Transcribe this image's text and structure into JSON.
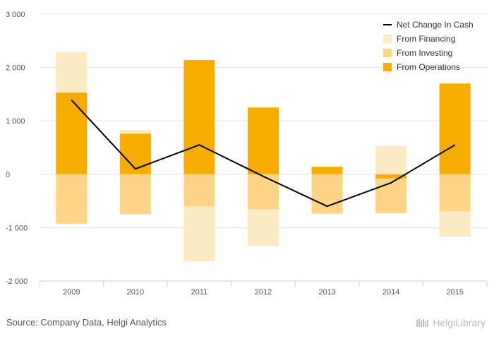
{
  "chart_data": {
    "type": "bar",
    "categories": [
      "2009",
      "2010",
      "2011",
      "2012",
      "2013",
      "2014",
      "2015"
    ],
    "series": [
      {
        "name": "From Operations",
        "type": "bar",
        "color": "#f7ad00",
        "values": [
          1530,
          760,
          2140,
          1250,
          140,
          -80,
          1700
        ]
      },
      {
        "name": "From Investing",
        "type": "bar",
        "color": "#fdd584",
        "values": [
          -930,
          -750,
          -600,
          -660,
          -740,
          -650,
          -700
        ]
      },
      {
        "name": "From Financing",
        "type": "bar",
        "color": "#fdebc4",
        "values": [
          760,
          70,
          -1030,
          -680,
          0,
          530,
          -470
        ]
      },
      {
        "name": "Net Change In Cash",
        "type": "line",
        "color": "#000000",
        "values": [
          1390,
          100,
          550,
          -40,
          -600,
          -160,
          550
        ]
      }
    ],
    "y_ticks": [
      "3 000",
      "2 000",
      "1 000",
      "0",
      "-1 000",
      "-2 000"
    ],
    "ylim": [
      -2000,
      3000
    ],
    "grid": true,
    "legend_position": "top-right",
    "legend_order": [
      "Net Change In Cash",
      "From Financing",
      "From Investing",
      "From Operations"
    ]
  },
  "footer": {
    "source": "Source: Company Data, Helgi Analytics",
    "logo_text": "HelgiLibrary"
  }
}
